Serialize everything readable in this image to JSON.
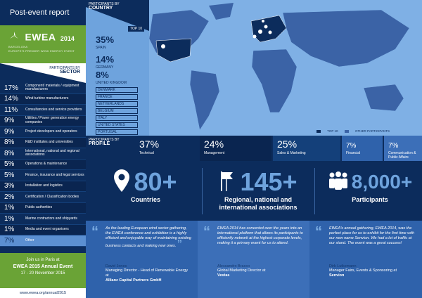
{
  "header": {
    "title": "Post-event report"
  },
  "logo": {
    "brand": "EWEA",
    "year": "2014",
    "location": "BARCELONA",
    "tagline": "EUROPE'S PREMIER WIND ENERGY EVENT"
  },
  "sector": {
    "heading_small": "PARTICIPANTS BY",
    "heading": "SECTOR",
    "items": [
      {
        "pct": "17%",
        "name": "Component/ materials / equipment manufacturers"
      },
      {
        "pct": "14%",
        "name": "Wind turbine manufacturers"
      },
      {
        "pct": "11%",
        "name": "Consultancies and service providers"
      },
      {
        "pct": "9%",
        "name": "Utilities / Power generation energy companies"
      },
      {
        "pct": "9%",
        "name": "Project developers and operators"
      },
      {
        "pct": "8%",
        "name": "R&D institutes and universities"
      },
      {
        "pct": "8%",
        "name": "International, national and regional associations"
      },
      {
        "pct": "5%",
        "name": "Operations & maintenance"
      },
      {
        "pct": "5%",
        "name": "Finance, insurance and legal services"
      },
      {
        "pct": "3%",
        "name": "Installation and logistics"
      },
      {
        "pct": "2%",
        "name": "Certification / Classification bodies"
      },
      {
        "pct": "1%",
        "name": "Public authorities"
      },
      {
        "pct": "1%",
        "name": "Marine contractors and shipyards"
      },
      {
        "pct": "1%",
        "name": "Media and event organisers"
      },
      {
        "pct": "7%",
        "name": "Other"
      }
    ]
  },
  "paris": {
    "line1": "Join us in Paris at",
    "line2": "EWEA 2015 Annual Event",
    "line3": "17 - 20 November 2015"
  },
  "footer_url": "www.ewea.org/annual2015",
  "country": {
    "heading_small": "PARTICIPANTS BY",
    "heading": "COUNTRY",
    "top10_label": "TOP 10",
    "items": [
      {
        "value": "35%",
        "name": "SPAIN"
      },
      {
        "value": "14%",
        "name": "GERMANY"
      },
      {
        "value": "8%",
        "name": "UNITED KINGDOM"
      }
    ],
    "others": [
      "DENMARK",
      "FRANCE",
      "NETHERLANDS",
      "BELGIUM",
      "ITALY",
      "UNITED STATES",
      "PORTUGAL"
    ],
    "legend": {
      "top10": "TOP 10",
      "other": "OTHER PARTICIPANTS"
    }
  },
  "profile": {
    "heading_small": "PARTICIPANTS BY",
    "heading": "PROFILE",
    "items": [
      {
        "value": "37%",
        "name": "Technical"
      },
      {
        "value": "24%",
        "name": "Management"
      },
      {
        "value": "25%",
        "name": "Sales & Marketing"
      },
      {
        "value": "7%",
        "name": "Financial"
      },
      {
        "value": "7%",
        "name": "Communication & Public Affairs"
      }
    ]
  },
  "stats": [
    {
      "big": "80+",
      "label": "Countries"
    },
    {
      "big": "145+",
      "label": "Regional, national and international associations"
    },
    {
      "big": "8,000+",
      "label": "Participants"
    }
  ],
  "quotes": [
    {
      "text": "As the leading European wind sector gathering, the EWEA conference and exhibition is a highly efficient and enjoyable way of maintaining existing business contacts and making new ones.",
      "name": "David Jones",
      "role": "Managing Director - Head of Renewable Energy at",
      "company": "Allianz Capital Partners GmbH"
    },
    {
      "text": "EWEA 2014 has converted over the years into an international platform that allows its participants to efficiently network at the highest corporate levels, making it a primary event for us to attend.",
      "name": "Alessandro Bracco",
      "role": "Global Marketing Director at",
      "company": "Vestas"
    },
    {
      "text": "EWEA's annual gathering, EWEA 2014, was the perfect place for us to exhibit for the first time with our new name Senvion. We had a lot of traffic at our stand. The event was a great success!",
      "name": "Dirk Lutkemann",
      "role": "Manager Fairs, Events & Sponsoring at",
      "company": "Senvion"
    }
  ],
  "colors": {
    "navy": "#0c2c5c",
    "green": "#6aa336",
    "light_blue": "#6ea3dd",
    "map_sea": "#7fb0e5"
  }
}
